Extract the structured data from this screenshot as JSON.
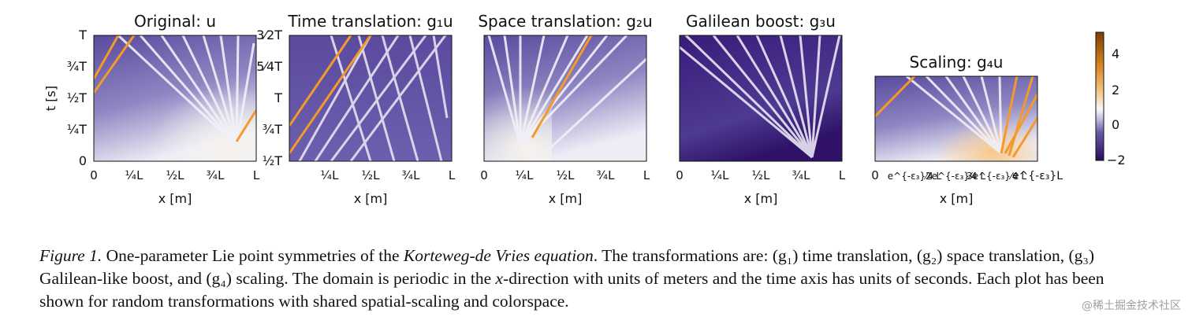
{
  "figure": {
    "panels": [
      {
        "id": "original",
        "title": "Original: u",
        "xticks": [
          "0",
          "¼L",
          "½L",
          "¾L",
          "L"
        ],
        "yticks": [
          "0",
          "¼T",
          "½T",
          "¾T",
          "T"
        ],
        "ylabel": "t [s]",
        "xlabel": "x [m]"
      },
      {
        "id": "time",
        "title": "Time translation: g₁u",
        "xticks": [
          "¼L",
          "½L",
          "¾L",
          "L"
        ],
        "yticks": [
          "½T",
          "¾T",
          "T",
          "5⁄4T",
          "3⁄2T"
        ],
        "xlabel": "x [m]"
      },
      {
        "id": "space",
        "title": "Space translation: g₂u",
        "xticks": [
          "0",
          "¼L",
          "½L",
          "¾L",
          "L"
        ],
        "xlabel": "x [m]"
      },
      {
        "id": "galilean",
        "title": "Galilean boost: g₃u",
        "xticks": [
          "0",
          "¼L",
          "½L",
          "¾L",
          "L"
        ],
        "xlabel": "x [m]"
      },
      {
        "id": "scaling",
        "title": "Scaling: g₄u",
        "xticks": [
          "0",
          "e^{-ε₃}⁄4 L",
          "2e^{-ε₃}⁄4 L",
          "3e^{-ε₃}⁄4 L",
          "e^{-ε₃}L"
        ],
        "xlabel": "x [m]"
      }
    ],
    "colorbar": {
      "ticks": [
        "4",
        "2",
        "0",
        "−2"
      ],
      "colors": [
        "#3b0f6f",
        "#7a6cb5",
        "#f7f7f7",
        "#f0a040",
        "#8a4a08"
      ]
    }
  },
  "caption": {
    "label": "Figure 1.",
    "part1": " One-parameter Lie point symmetries of the ",
    "equation": "Korteweg-de Vries equation",
    "part2": ". The transformations are: ",
    "g1": "(g₁)",
    "t1": " time translation, ",
    "g2": "(g₂)",
    "t2": " space translation, ",
    "g3": "(g₃)",
    "t3": " Galilean-like boost, and ",
    "g4": "(g₄)",
    "t4": " scaling. The domain is periodic in the ",
    "xvar": "x",
    "t5": "-direction with units of meters and the time axis has units of seconds. Each plot has been shown for random transformations with shared spatial-scaling and colorspace."
  },
  "watermark": "@稀土掘金技术社区"
}
